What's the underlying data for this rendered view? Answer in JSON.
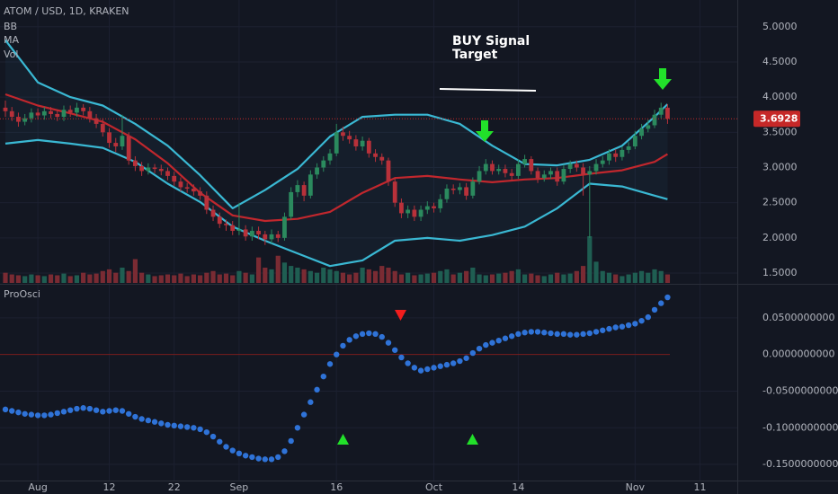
{
  "chart_data": {
    "type": "candlestick",
    "title": "ATOM / USD, 1D, KRAKEN",
    "indicator_labels": [
      "BB",
      "MA",
      "Vol"
    ],
    "annotations": [
      "BUY Signal",
      "Target"
    ],
    "colors": {
      "up": "#2b8a5e",
      "down": "#b8313a",
      "volume_up": "#1f5e52",
      "volume_down": "#7a2b33",
      "bb": "#3ab8d3",
      "ma": "#c1272d",
      "oscillator": "#2f73d8",
      "zero": "#7a1d1d",
      "last": "#c62828"
    },
    "x": [
      "Jul 27",
      "Jul 28",
      "Jul 29",
      "Jul 30",
      "Jul 31",
      "Aug 1",
      "Aug 2",
      "Aug 3",
      "Aug 4",
      "Aug 5",
      "Aug 6",
      "Aug 7",
      "Aug 8",
      "Aug 9",
      "Aug 10",
      "Aug 11",
      "Aug 12",
      "Aug 13",
      "Aug 14",
      "Aug 15",
      "Aug 16",
      "Aug 17",
      "Aug 18",
      "Aug 19",
      "Aug 20",
      "Aug 21",
      "Aug 22",
      "Aug 23",
      "Aug 24",
      "Aug 25",
      "Aug 26",
      "Aug 27",
      "Aug 28",
      "Aug 29",
      "Aug 30",
      "Aug 31",
      "Sep 1",
      "Sep 2",
      "Sep 3",
      "Sep 4",
      "Sep 5",
      "Sep 6",
      "Sep 7",
      "Sep 8",
      "Sep 9",
      "Sep 10",
      "Sep 11",
      "Sep 12",
      "Sep 13",
      "Sep 14",
      "Sep 15",
      "Sep 16",
      "Sep 17",
      "Sep 18",
      "Sep 19",
      "Sep 20",
      "Sep 21",
      "Sep 22",
      "Sep 23",
      "Sep 24",
      "Sep 25",
      "Sep 26",
      "Sep 27",
      "Sep 28",
      "Sep 29",
      "Sep 30",
      "Oct 1",
      "Oct 2",
      "Oct 3",
      "Oct 4",
      "Oct 5",
      "Oct 6",
      "Oct 7",
      "Oct 8",
      "Oct 9",
      "Oct 10",
      "Oct 11",
      "Oct 12",
      "Oct 13",
      "Oct 14",
      "Oct 15",
      "Oct 16",
      "Oct 17",
      "Oct 18",
      "Oct 19",
      "Oct 20",
      "Oct 21",
      "Oct 22",
      "Oct 23",
      "Oct 24",
      "Oct 25",
      "Oct 26",
      "Oct 27",
      "Oct 28",
      "Oct 29",
      "Oct 30",
      "Oct 31",
      "Nov 1",
      "Nov 2",
      "Nov 3",
      "Nov 4",
      "Nov 5",
      "Nov 6"
    ],
    "open": [
      3.85,
      3.8,
      3.72,
      3.65,
      3.7,
      3.78,
      3.74,
      3.8,
      3.76,
      3.72,
      3.82,
      3.78,
      3.85,
      3.8,
      3.7,
      3.62,
      3.5,
      3.35,
      3.3,
      3.45,
      3.1,
      3.02,
      2.95,
      3.0,
      2.98,
      2.95,
      2.88,
      2.8,
      2.72,
      2.7,
      2.66,
      2.6,
      2.4,
      2.3,
      2.2,
      2.18,
      2.1,
      2.12,
      2.02,
      2.1,
      2.05,
      1.98,
      2.05,
      2.0,
      2.3,
      2.65,
      2.75,
      2.6,
      2.9,
      3.0,
      3.1,
      3.2,
      3.5,
      3.45,
      3.4,
      3.3,
      3.38,
      3.2,
      3.15,
      3.1,
      2.8,
      2.5,
      2.35,
      2.4,
      2.3,
      2.4,
      2.45,
      2.42,
      2.55,
      2.7,
      2.68,
      2.72,
      2.6,
      2.8,
      2.95,
      3.05,
      2.95,
      2.98,
      2.92,
      2.88,
      3.05,
      3.12,
      2.95,
      2.85,
      2.9,
      2.95,
      2.8,
      2.98,
      3.05,
      3.0,
      2.9,
      2.95,
      3.05,
      3.1,
      3.2,
      3.15,
      3.25,
      3.3,
      3.45,
      3.55,
      3.6,
      3.75,
      3.85
    ],
    "high": [
      3.95,
      3.86,
      3.78,
      3.76,
      3.84,
      3.84,
      3.86,
      3.86,
      3.82,
      3.88,
      3.88,
      3.92,
      3.9,
      3.86,
      3.76,
      3.7,
      3.56,
      3.42,
      3.75,
      3.5,
      3.16,
      3.08,
      3.06,
      3.05,
      3.04,
      3.0,
      2.94,
      2.86,
      2.78,
      2.76,
      2.72,
      2.66,
      2.46,
      2.36,
      2.26,
      2.24,
      2.5,
      2.18,
      2.16,
      2.16,
      2.1,
      2.12,
      2.1,
      2.36,
      2.72,
      2.82,
      2.8,
      2.96,
      3.06,
      3.16,
      3.26,
      3.62,
      3.58,
      3.52,
      3.46,
      3.44,
      3.42,
      3.26,
      3.2,
      3.14,
      2.86,
      2.56,
      2.46,
      2.46,
      2.46,
      2.52,
      2.5,
      2.62,
      2.76,
      2.76,
      2.78,
      2.78,
      2.86,
      3.02,
      3.12,
      3.1,
      3.04,
      3.04,
      2.98,
      3.12,
      3.18,
      3.16,
      3.0,
      2.96,
      3.0,
      3.0,
      3.04,
      3.1,
      3.1,
      3.06,
      3.02,
      3.12,
      3.16,
      3.26,
      3.26,
      3.3,
      3.36,
      3.52,
      3.62,
      3.68,
      3.82,
      3.92,
      3.9
    ],
    "low": [
      3.72,
      3.66,
      3.58,
      3.6,
      3.64,
      3.68,
      3.68,
      3.7,
      3.66,
      3.66,
      3.72,
      3.72,
      3.74,
      3.64,
      3.56,
      3.44,
      3.28,
      3.22,
      3.25,
      3.04,
      2.95,
      2.88,
      2.9,
      2.92,
      2.89,
      2.82,
      2.74,
      2.66,
      2.64,
      2.6,
      2.54,
      2.34,
      2.24,
      2.14,
      2.1,
      2.04,
      2.04,
      1.96,
      1.96,
      1.98,
      1.9,
      1.92,
      1.94,
      1.96,
      2.26,
      2.58,
      2.52,
      2.56,
      2.84,
      2.94,
      3.04,
      3.16,
      3.38,
      3.34,
      3.24,
      3.24,
      3.14,
      3.08,
      3.04,
      2.74,
      2.44,
      2.28,
      2.28,
      2.24,
      2.24,
      2.34,
      2.36,
      2.36,
      2.5,
      2.62,
      2.62,
      2.54,
      2.56,
      2.76,
      2.9,
      2.9,
      2.9,
      2.86,
      2.82,
      2.84,
      3.0,
      2.9,
      2.78,
      2.8,
      2.84,
      2.74,
      2.76,
      2.92,
      2.94,
      2.6,
      2.0,
      2.9,
      3.0,
      3.04,
      3.08,
      3.1,
      3.2,
      3.26,
      3.4,
      3.5,
      3.56,
      3.7,
      3.62
    ],
    "close": [
      3.8,
      3.72,
      3.65,
      3.7,
      3.78,
      3.74,
      3.8,
      3.76,
      3.72,
      3.82,
      3.78,
      3.85,
      3.8,
      3.7,
      3.62,
      3.5,
      3.35,
      3.3,
      3.45,
      3.1,
      3.02,
      2.95,
      3.0,
      2.98,
      2.95,
      2.88,
      2.8,
      2.72,
      2.7,
      2.66,
      2.6,
      2.4,
      2.3,
      2.2,
      2.18,
      2.1,
      2.12,
      2.02,
      2.1,
      2.05,
      1.98,
      2.05,
      2.0,
      2.3,
      2.65,
      2.75,
      2.6,
      2.9,
      3.0,
      3.1,
      3.2,
      3.5,
      3.45,
      3.4,
      3.3,
      3.38,
      3.2,
      3.15,
      3.1,
      2.8,
      2.5,
      2.35,
      2.4,
      2.3,
      2.4,
      2.45,
      2.42,
      2.55,
      2.7,
      2.68,
      2.72,
      2.6,
      2.8,
      2.95,
      3.05,
      2.95,
      2.98,
      2.92,
      2.88,
      3.05,
      3.12,
      2.95,
      2.85,
      2.9,
      2.95,
      2.8,
      2.98,
      3.05,
      3.0,
      2.9,
      2.95,
      3.05,
      3.1,
      3.2,
      3.15,
      3.25,
      3.3,
      3.45,
      3.55,
      3.6,
      3.75,
      3.85,
      3.6928
    ],
    "volume": [
      12,
      10,
      9,
      8,
      10,
      9,
      8,
      10,
      9,
      11,
      8,
      9,
      12,
      10,
      11,
      14,
      16,
      12,
      18,
      14,
      28,
      12,
      10,
      8,
      9,
      10,
      9,
      11,
      8,
      10,
      9,
      12,
      14,
      10,
      11,
      9,
      14,
      12,
      10,
      30,
      18,
      16,
      32,
      24,
      20,
      18,
      16,
      14,
      12,
      18,
      16,
      14,
      12,
      10,
      12,
      18,
      16,
      14,
      20,
      18,
      14,
      10,
      12,
      9,
      10,
      11,
      12,
      14,
      16,
      10,
      12,
      14,
      18,
      10,
      9,
      10,
      11,
      12,
      14,
      16,
      10,
      11,
      9,
      8,
      10,
      12,
      10,
      11,
      14,
      20,
      55,
      25,
      14,
      12,
      10,
      8,
      10,
      12,
      14,
      12,
      16,
      14,
      10
    ],
    "bb": {
      "x": [
        "Jul 27",
        "Aug 1",
        "Aug 6",
        "Aug 11",
        "Aug 16",
        "Aug 21",
        "Aug 26",
        "Aug 31",
        "Sep 5",
        "Sep 10",
        "Sep 15",
        "Sep 20",
        "Sep 25",
        "Sep 30",
        "Oct 5",
        "Oct 10",
        "Oct 15",
        "Oct 20",
        "Oct 25",
        "Oct 30",
        "Nov 4",
        "Nov 6"
      ],
      "upper": [
        4.81,
        4.21,
        4.0,
        3.88,
        3.62,
        3.31,
        2.89,
        2.42,
        2.68,
        2.98,
        3.44,
        3.72,
        3.75,
        3.75,
        3.62,
        3.31,
        3.05,
        3.03,
        3.11,
        3.31,
        3.72,
        3.9
      ],
      "middle": [
        4.04,
        3.88,
        3.77,
        3.65,
        3.4,
        3.06,
        2.64,
        2.32,
        2.24,
        2.27,
        2.37,
        2.64,
        2.85,
        2.88,
        2.83,
        2.79,
        2.83,
        2.85,
        2.91,
        2.96,
        3.08,
        3.19
      ],
      "lower": [
        3.34,
        3.39,
        3.34,
        3.28,
        3.08,
        2.77,
        2.51,
        2.16,
        1.96,
        1.78,
        1.6,
        1.68,
        1.96,
        2.0,
        1.96,
        2.04,
        2.16,
        2.42,
        2.77,
        2.73,
        2.6,
        2.55
      ]
    },
    "ylim": [
      1.36,
      5.38
    ],
    "yticks": [
      {
        "value": 1.5,
        "label": "1.5000"
      },
      {
        "value": 2,
        "label": "2.0000"
      },
      {
        "value": 2.5,
        "label": "2.5000"
      },
      {
        "value": 3,
        "label": "3.0000"
      },
      {
        "value": 3.5,
        "label": "3.5000"
      },
      {
        "value": 4,
        "label": "4.0000"
      },
      {
        "value": 4.5,
        "label": "4.5000"
      },
      {
        "value": 5,
        "label": "5.0000"
      }
    ],
    "xticks": [
      {
        "value": "Aug 1",
        "label": "Aug"
      },
      {
        "value": "Aug 12",
        "label": "12"
      },
      {
        "value": "Aug 22",
        "label": "22"
      },
      {
        "value": "Sep 1",
        "label": "Sep"
      },
      {
        "value": "Sep 16",
        "label": "16"
      },
      {
        "value": "Oct 1",
        "label": "Oct"
      },
      {
        "value": "Oct 14",
        "label": "14"
      },
      {
        "value": "Nov 1",
        "label": "Nov"
      },
      {
        "value": "Nov 11",
        "label": "11"
      }
    ],
    "oscillator": {
      "title": "ProOsci",
      "values": [
        -0.075,
        -0.077,
        -0.079,
        -0.081,
        -0.082,
        -0.083,
        -0.083,
        -0.082,
        -0.08,
        -0.078,
        -0.076,
        -0.074,
        -0.073,
        -0.074,
        -0.076,
        -0.078,
        -0.077,
        -0.076,
        -0.077,
        -0.081,
        -0.085,
        -0.088,
        -0.09,
        -0.092,
        -0.094,
        -0.096,
        -0.097,
        -0.098,
        -0.099,
        -0.1,
        -0.102,
        -0.106,
        -0.112,
        -0.119,
        -0.126,
        -0.131,
        -0.135,
        -0.138,
        -0.14,
        -0.142,
        -0.143,
        -0.143,
        -0.14,
        -0.132,
        -0.118,
        -0.1,
        -0.082,
        -0.065,
        -0.048,
        -0.03,
        -0.013,
        0.0,
        0.012,
        0.02,
        0.025,
        0.028,
        0.029,
        0.028,
        0.024,
        0.016,
        0.006,
        -0.004,
        -0.012,
        -0.018,
        -0.022,
        -0.02,
        -0.018,
        -0.016,
        -0.014,
        -0.012,
        -0.009,
        -0.005,
        0.002,
        0.008,
        0.013,
        0.016,
        0.019,
        0.022,
        0.025,
        0.028,
        0.03,
        0.031,
        0.031,
        0.03,
        0.029,
        0.028,
        0.028,
        0.027,
        0.027,
        0.028,
        0.029,
        0.031,
        0.033,
        0.035,
        0.037,
        0.038,
        0.04,
        0.042,
        0.046,
        0.051,
        0.061,
        0.07,
        0.078
      ],
      "ylim": [
        -0.172,
        0.094
      ],
      "yticks": [
        {
          "value": 0.05,
          "label": "0.0500000000"
        },
        {
          "value": 0,
          "label": "0.0000000000"
        },
        {
          "value": -0.05,
          "label": "-0.0500000000"
        },
        {
          "value": -0.1,
          "label": "-0.1000000000"
        },
        {
          "value": -0.15,
          "label": "-0.1500000000"
        }
      ]
    }
  }
}
